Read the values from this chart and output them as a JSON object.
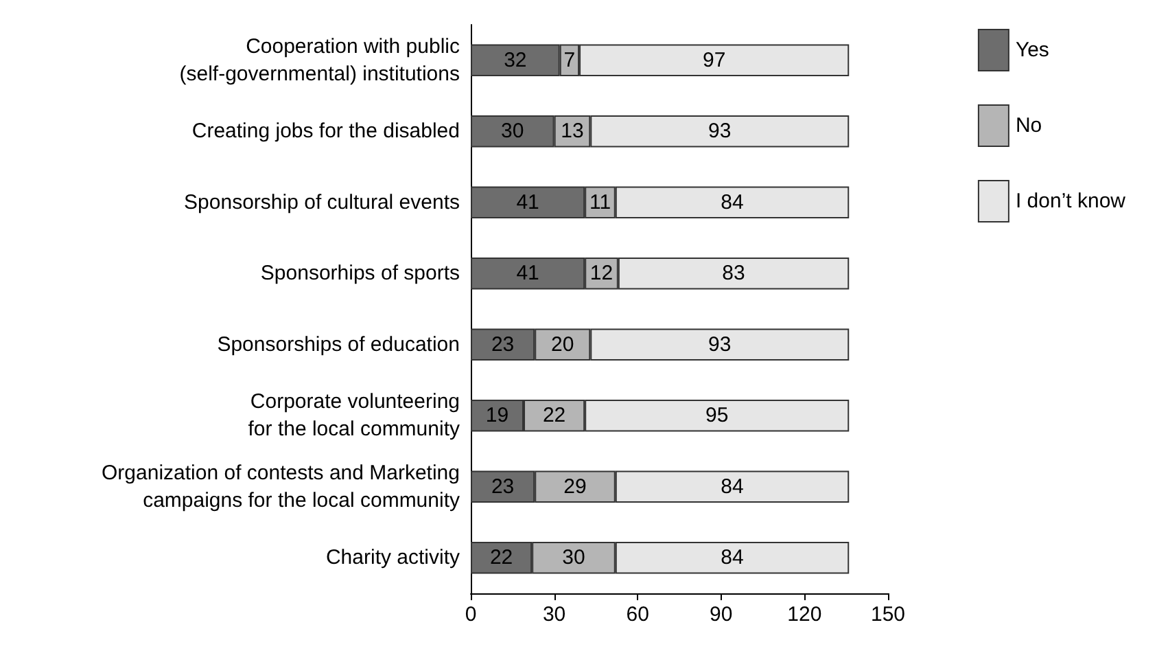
{
  "chart_data": {
    "type": "bar",
    "orientation": "horizontal",
    "stacked": true,
    "data_labels": true,
    "legend": "top right",
    "grid": false,
    "categories": [
      "Cooperation with public\n(self-governmental) institutions",
      "Creating jobs for the disabled",
      "Sponsorship of cultural events",
      "Sponsorhips of sports",
      "Sponsorships of education",
      "Corporate volunteering\nfor the local community",
      "Organization of contests and Marketing\ncampaigns for the local community",
      "Charity activity"
    ],
    "series": [
      {
        "name": "Yes",
        "color": "#6d6d6d",
        "values": [
          32,
          30,
          41,
          41,
          23,
          19,
          23,
          22
        ]
      },
      {
        "name": "No",
        "color": "#b5b5b5",
        "values": [
          7,
          13,
          11,
          12,
          20,
          22,
          29,
          30
        ]
      },
      {
        "name": "I don’t know",
        "color": "#e6e6e6",
        "values": [
          97,
          93,
          84,
          83,
          93,
          95,
          84,
          84
        ]
      }
    ],
    "xlim": [
      0,
      150
    ],
    "xticks": [
      0,
      30,
      60,
      90,
      120,
      150
    ]
  }
}
